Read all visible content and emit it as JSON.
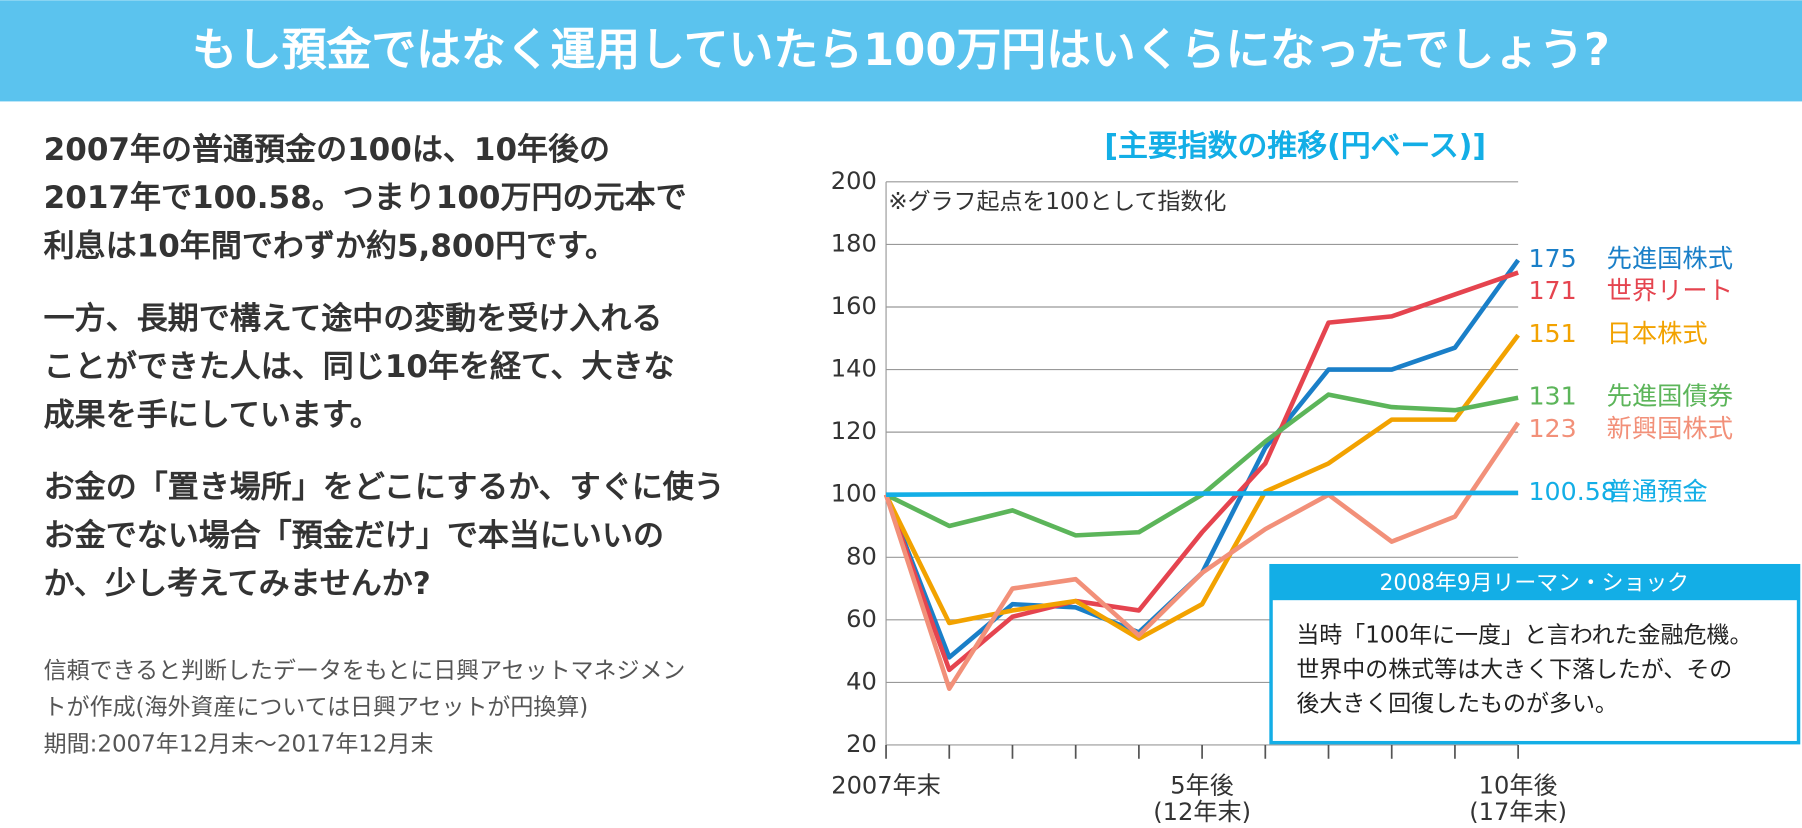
{
  "header": {
    "title": "もし預金ではなく運用していたら100万円はいくらになったでしょう?"
  },
  "body": {
    "paragraphs": [
      [
        "2007年の普通預金の100は、10年後の",
        "2017年で100.58。つまり100万円の元本で",
        "利息は10年間でわずか約5,800円です。"
      ],
      [
        "一方、長期で構えて途中の変動を受け入れる",
        "ことができた人は、同じ10年を経て、大きな",
        "成果を手にしています。"
      ],
      [
        "お金の「置き場所」をどこにするか、すぐに使う",
        "お金でない場合「預金だけ」で本当にいいの",
        "か、少し考えてみませんか?"
      ]
    ],
    "note": [
      "信頼できると判断したデータをもとに日興アセットマネジメン",
      "トが作成(海外資産については日興アセットが円換算)",
      "期間:2007年12月末〜2017年12月末"
    ]
  },
  "chart_data": {
    "type": "line",
    "title": "[主要指数の推移(円ベース)]",
    "subtitle": "※グラフ起点を100として指数化",
    "categories": [
      "2007年末",
      null,
      null,
      null,
      null,
      "5年後\n(12年末)",
      null,
      null,
      null,
      null,
      "10年後\n(17年末)"
    ],
    "ylim": [
      20,
      200
    ],
    "yticks": [
      20,
      40,
      60,
      80,
      100,
      120,
      140,
      160,
      180,
      200
    ],
    "grid": true,
    "series": [
      {
        "name": "先進国株式",
        "color": "#1a7fc8",
        "values": [
          100,
          48,
          65,
          64,
          56,
          75,
          115,
          140,
          140,
          147,
          175
        ]
      },
      {
        "name": "世界リート",
        "color": "#e5444f",
        "values": [
          100,
          44,
          61,
          66,
          63,
          88,
          110,
          155,
          157,
          164,
          171
        ]
      },
      {
        "name": "日本株式",
        "color": "#f2a200",
        "values": [
          100,
          59,
          63,
          66,
          54,
          65,
          101,
          110,
          124,
          124,
          151
        ]
      },
      {
        "name": "先進国債券",
        "color": "#5cb55a",
        "values": [
          100,
          90,
          95,
          87,
          88,
          100,
          117,
          132,
          128,
          127,
          131
        ]
      },
      {
        "name": "新興国株式",
        "color": "#f29079",
        "values": [
          100,
          38,
          70,
          73,
          55,
          75,
          89,
          100,
          85,
          93,
          123
        ]
      },
      {
        "name": "普通預金",
        "color": "#13aee6",
        "values": [
          100,
          100.1,
          100.2,
          100.25,
          100.3,
          100.35,
          100.4,
          100.45,
          100.5,
          100.55,
          100.58
        ]
      }
    ],
    "annotation": {
      "title": "2008年9月リーマン・ショック",
      "lines": [
        "当時「100年に一度」と言われた金融危機。",
        "世界中の株式等は大きく下落したが、その",
        "後大きく回復したものが多い。"
      ]
    }
  }
}
